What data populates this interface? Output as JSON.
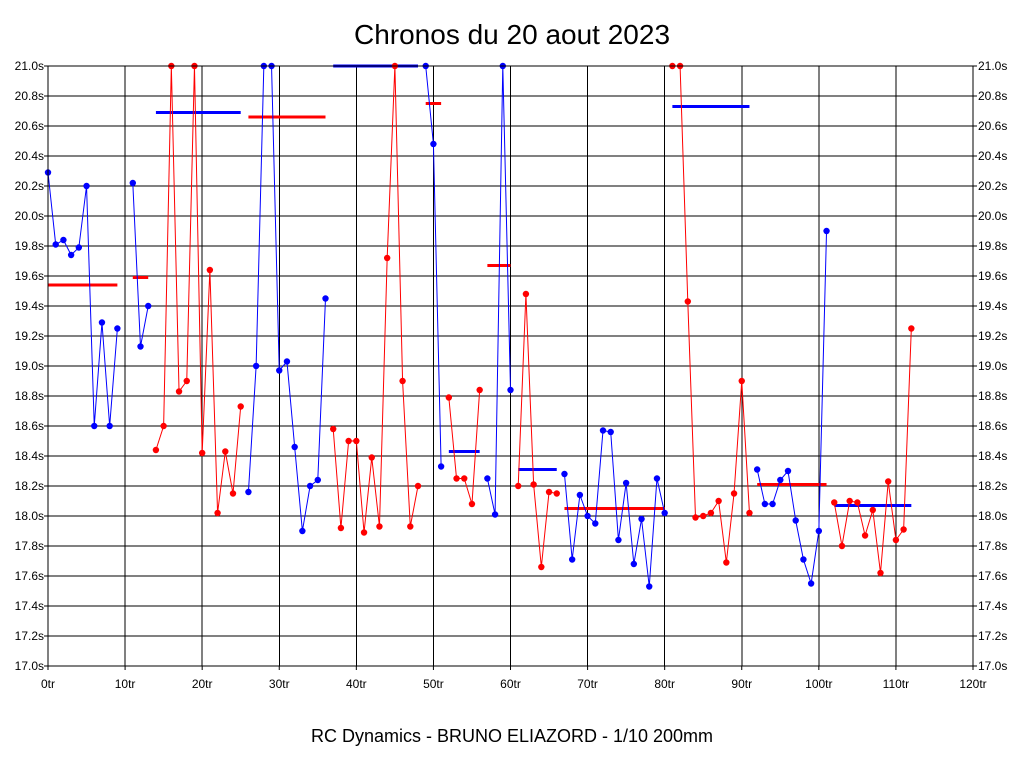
{
  "chart_data": {
    "type": "line",
    "title": "Chronos du 20 aout 2023",
    "footer": "RC Dynamics - BRUNO ELIAZORD - 1/10 200mm",
    "x_ticks": [
      "0tr",
      "10tr",
      "20tr",
      "30tr",
      "40tr",
      "50tr",
      "60tr",
      "70tr",
      "80tr",
      "90tr",
      "100tr",
      "110tr",
      "120tr"
    ],
    "y_ticks": [
      "17.0s",
      "17.2s",
      "17.4s",
      "17.6s",
      "17.8s",
      "18.0s",
      "18.2s",
      "18.4s",
      "18.6s",
      "18.8s",
      "19.0s",
      "19.2s",
      "19.4s",
      "19.6s",
      "19.8s",
      "20.0s",
      "20.2s",
      "20.4s",
      "20.6s",
      "20.8s",
      "21.0s"
    ],
    "xlim": [
      0,
      120
    ],
    "ylim": [
      17.0,
      21.0
    ],
    "grid": true,
    "colors": {
      "blue": "#0000ff",
      "red": "#ff0000"
    },
    "series": [
      {
        "color": "blue",
        "points": [
          [
            0,
            20.29
          ],
          [
            1,
            19.81
          ],
          [
            2,
            19.84
          ],
          [
            3,
            19.74
          ],
          [
            4,
            19.79
          ],
          [
            5,
            20.2
          ],
          [
            6,
            18.6
          ],
          [
            7,
            19.29
          ],
          [
            8,
            18.6
          ],
          [
            9,
            19.25
          ]
        ]
      },
      {
        "color": "blue",
        "points": [
          [
            11,
            20.22
          ],
          [
            12,
            19.13
          ],
          [
            13,
            19.4
          ]
        ]
      },
      {
        "color": "red",
        "points": [
          [
            14,
            18.44
          ],
          [
            15,
            18.6
          ],
          [
            16,
            21.0
          ],
          [
            17,
            18.83
          ],
          [
            18,
            18.9
          ],
          [
            19,
            21.0
          ],
          [
            20,
            18.42
          ],
          [
            21,
            19.64
          ],
          [
            22,
            18.02
          ],
          [
            23,
            18.43
          ],
          [
            24,
            18.15
          ],
          [
            25,
            18.73
          ]
        ]
      },
      {
        "color": "blue",
        "points": [
          [
            26,
            18.16
          ],
          [
            27,
            19.0
          ],
          [
            28,
            21.0
          ],
          [
            29,
            21.0
          ],
          [
            30,
            18.97
          ],
          [
            31,
            19.03
          ],
          [
            32,
            18.46
          ],
          [
            33,
            17.9
          ],
          [
            34,
            18.2
          ],
          [
            35,
            18.24
          ],
          [
            36,
            19.45
          ]
        ]
      },
      {
        "color": "red",
        "points": [
          [
            37,
            18.58
          ],
          [
            38,
            17.92
          ],
          [
            39,
            18.5
          ],
          [
            40,
            18.5
          ],
          [
            41,
            17.89
          ],
          [
            42,
            18.39
          ],
          [
            43,
            17.93
          ],
          [
            44,
            19.72
          ],
          [
            45,
            21.0
          ],
          [
            46,
            18.9
          ],
          [
            47,
            17.93
          ],
          [
            48,
            18.2
          ]
        ]
      },
      {
        "color": "blue",
        "points": [
          [
            49,
            21.0
          ],
          [
            50,
            20.48
          ],
          [
            51,
            18.33
          ]
        ]
      },
      {
        "color": "red",
        "points": [
          [
            52,
            18.79
          ],
          [
            53,
            18.25
          ],
          [
            54,
            18.25
          ],
          [
            55,
            18.08
          ],
          [
            56,
            18.84
          ]
        ]
      },
      {
        "color": "blue",
        "points": [
          [
            57,
            18.25
          ],
          [
            58,
            18.01
          ],
          [
            59,
            21.0
          ],
          [
            60,
            18.84
          ]
        ]
      },
      {
        "color": "red",
        "points": [
          [
            61,
            18.2
          ],
          [
            62,
            19.48
          ],
          [
            63,
            18.21
          ],
          [
            64,
            17.66
          ],
          [
            65,
            18.16
          ],
          [
            66,
            18.15
          ]
        ]
      },
      {
        "color": "blue",
        "points": [
          [
            67,
            18.28
          ],
          [
            68,
            17.71
          ],
          [
            69,
            18.14
          ],
          [
            70,
            18.0
          ],
          [
            71,
            17.95
          ],
          [
            72,
            18.57
          ],
          [
            73,
            18.56
          ],
          [
            74,
            17.84
          ],
          [
            75,
            18.22
          ],
          [
            76,
            17.68
          ],
          [
            77,
            17.98
          ],
          [
            78,
            17.53
          ],
          [
            79,
            18.25
          ],
          [
            80,
            18.02
          ]
        ]
      },
      {
        "color": "red",
        "points": [
          [
            81,
            21.0
          ],
          [
            82,
            21.0
          ],
          [
            83,
            19.43
          ],
          [
            84,
            17.99
          ],
          [
            85,
            18.0
          ],
          [
            86,
            18.02
          ],
          [
            87,
            18.1
          ],
          [
            88,
            17.69
          ],
          [
            89,
            18.15
          ],
          [
            90,
            18.9
          ],
          [
            91,
            18.02
          ]
        ]
      },
      {
        "color": "blue",
        "points": [
          [
            92,
            18.31
          ],
          [
            93,
            18.08
          ],
          [
            94,
            18.08
          ],
          [
            95,
            18.24
          ],
          [
            96,
            18.3
          ],
          [
            97,
            17.97
          ],
          [
            98,
            17.71
          ],
          [
            99,
            17.55
          ],
          [
            100,
            17.9
          ],
          [
            101,
            19.9
          ]
        ]
      },
      {
        "color": "red",
        "points": [
          [
            102,
            18.09
          ],
          [
            103,
            17.8
          ],
          [
            104,
            18.1
          ],
          [
            105,
            18.09
          ],
          [
            106,
            17.87
          ],
          [
            107,
            18.04
          ],
          [
            108,
            17.62
          ],
          [
            109,
            18.23
          ],
          [
            110,
            17.84
          ],
          [
            111,
            17.91
          ],
          [
            112,
            19.25
          ]
        ]
      }
    ],
    "averages": [
      {
        "color": "red",
        "x": [
          0,
          9
        ],
        "y": 19.54
      },
      {
        "color": "red",
        "x": [
          11,
          13
        ],
        "y": 19.59
      },
      {
        "color": "blue",
        "x": [
          14,
          25
        ],
        "y": 20.69
      },
      {
        "color": "red",
        "x": [
          26,
          36
        ],
        "y": 20.66
      },
      {
        "color": "blue",
        "x": [
          37,
          48
        ],
        "y": 21.0
      },
      {
        "color": "red",
        "x": [
          49,
          51
        ],
        "y": 20.75
      },
      {
        "color": "blue",
        "x": [
          52,
          56
        ],
        "y": 18.43
      },
      {
        "color": "red",
        "x": [
          57,
          60
        ],
        "y": 19.67
      },
      {
        "color": "blue",
        "x": [
          61,
          66
        ],
        "y": 18.31
      },
      {
        "color": "red",
        "x": [
          67,
          80
        ],
        "y": 18.05
      },
      {
        "color": "blue",
        "x": [
          81,
          91
        ],
        "y": 20.73
      },
      {
        "color": "red",
        "x": [
          92,
          101
        ],
        "y": 18.21
      },
      {
        "color": "blue",
        "x": [
          102,
          112
        ],
        "y": 18.07
      }
    ]
  }
}
